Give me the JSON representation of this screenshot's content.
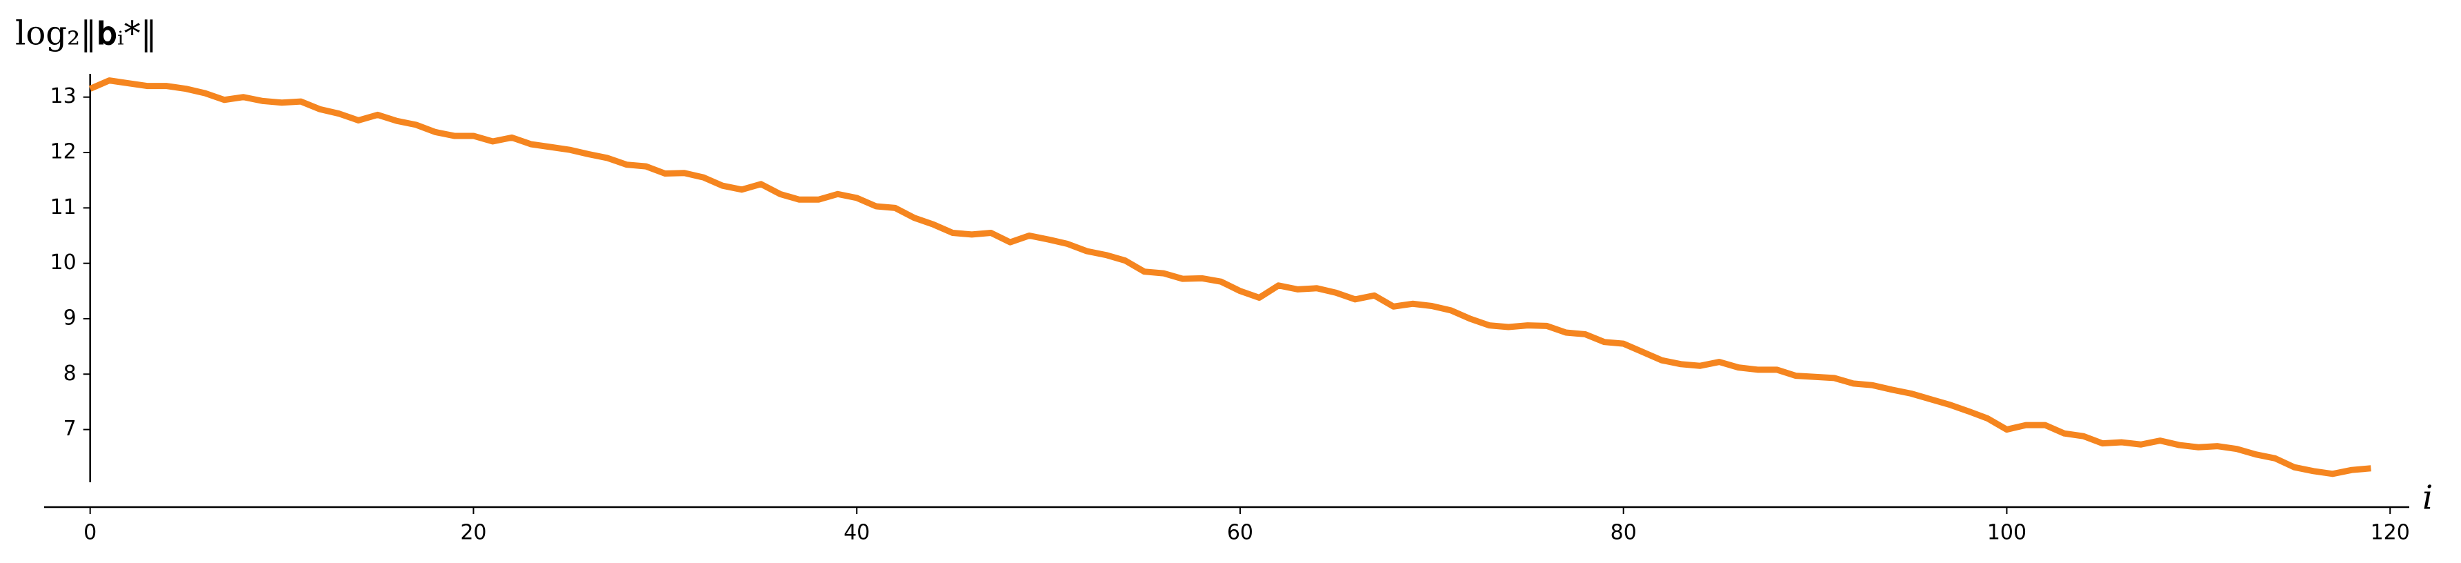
{
  "chart_data": {
    "type": "line",
    "y_label": "log₂‖𝐛ᵢ*‖",
    "x_label": "i",
    "x": [
      0,
      1,
      2,
      3,
      4,
      5,
      6,
      7,
      8,
      9,
      10,
      11,
      12,
      13,
      14,
      15,
      16,
      17,
      18,
      19,
      20,
      21,
      22,
      23,
      24,
      25,
      26,
      27,
      28,
      29,
      30,
      31,
      32,
      33,
      34,
      35,
      36,
      37,
      38,
      39,
      40,
      41,
      42,
      43,
      44,
      45,
      46,
      47,
      48,
      49,
      50,
      51,
      52,
      53,
      54,
      55,
      56,
      57,
      58,
      59,
      60,
      61,
      62,
      63,
      64,
      65,
      66,
      67,
      68,
      69,
      70,
      71,
      72,
      73,
      74,
      75,
      76,
      77,
      78,
      79,
      80,
      81,
      82,
      83,
      84,
      85,
      86,
      87,
      88,
      89,
      90,
      91,
      92,
      93,
      94,
      95,
      96,
      97,
      98,
      99,
      100,
      101,
      102,
      103,
      104,
      105,
      106,
      107,
      108,
      109,
      110,
      111,
      112,
      113,
      114,
      115,
      116,
      117,
      118,
      119
    ],
    "series": [
      {
        "color": "#f5851f",
        "values": [
          13.15,
          13.3,
          13.25,
          13.2,
          13.2,
          13.15,
          13.07,
          12.95,
          13.0,
          12.93,
          12.9,
          12.92,
          12.78,
          12.7,
          12.58,
          12.68,
          12.57,
          12.5,
          12.37,
          12.3,
          12.3,
          12.2,
          12.27,
          12.15,
          12.1,
          12.05,
          11.97,
          11.9,
          11.78,
          11.75,
          11.62,
          11.63,
          11.55,
          11.4,
          11.33,
          11.43,
          11.25,
          11.15,
          11.15,
          11.25,
          11.18,
          11.03,
          11.0,
          10.82,
          10.7,
          10.55,
          10.52,
          10.55,
          10.38,
          10.5,
          10.43,
          10.35,
          10.22,
          10.15,
          10.05,
          9.85,
          9.82,
          9.72,
          9.73,
          9.67,
          9.5,
          9.38,
          9.6,
          9.53,
          9.55,
          9.47,
          9.35,
          9.42,
          9.22,
          9.27,
          9.23,
          9.15,
          9.0,
          8.88,
          8.85,
          8.88,
          8.87,
          8.75,
          8.72,
          8.58,
          8.55,
          8.4,
          8.25,
          8.18,
          8.15,
          8.22,
          8.12,
          8.08,
          8.08,
          7.97,
          7.95,
          7.93,
          7.83,
          7.8,
          7.72,
          7.65,
          7.55,
          7.45,
          7.33,
          7.2,
          7.0,
          7.08,
          7.08,
          6.93,
          6.88,
          6.75,
          6.77,
          6.73,
          6.8,
          6.72,
          6.68,
          6.7,
          6.65,
          6.55,
          6.48,
          6.32,
          6.25,
          6.2,
          6.27,
          6.3
        ]
      }
    ],
    "xlim": [
      -2.4,
      121
    ],
    "ylim": [
      5.6,
      13.42
    ],
    "xticks": [
      0,
      20,
      40,
      60,
      80,
      100,
      120
    ],
    "yticks": [
      7,
      8,
      9,
      10,
      11,
      12,
      13
    ]
  }
}
